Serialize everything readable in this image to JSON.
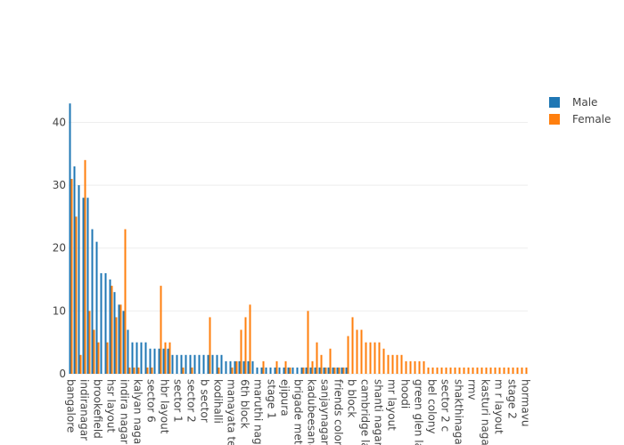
{
  "chart_data": {
    "type": "bar",
    "categories": [
      "bangalore",
      null,
      null,
      "indiranagar",
      null,
      null,
      "brookefield",
      null,
      null,
      "hsr layout",
      null,
      null,
      "indira nagar",
      null,
      null,
      "kalyan nagar",
      null,
      null,
      "sector 6",
      null,
      null,
      "hbr layout",
      null,
      null,
      "sector 1",
      null,
      null,
      "sector 2",
      null,
      null,
      "b sector",
      null,
      null,
      "kodihalli",
      null,
      null,
      "manayata tec",
      null,
      null,
      "6th block",
      null,
      null,
      "maruthi naga",
      null,
      null,
      "stage 1",
      null,
      null,
      "ejipura",
      null,
      null,
      "brigade metr",
      null,
      null,
      "kadubeesana",
      null,
      null,
      "sanjaynagar",
      null,
      null,
      "friends colon",
      null,
      null,
      "b block",
      null,
      null,
      "cambridge la",
      null,
      null,
      "shanti nagar",
      null,
      null,
      "mr layout",
      null,
      null,
      "hoodi",
      null,
      null,
      "green glen la",
      null,
      null,
      "bel colony",
      null,
      null,
      "sector 2 c",
      null,
      null,
      "shakthinagar",
      null,
      null,
      "rmv",
      null,
      null,
      "kasturi nagar",
      null,
      null,
      "m r layout",
      null,
      null,
      "stage 2",
      null,
      null,
      "hormavu"
    ],
    "series": [
      {
        "name": "Male",
        "color": "#1f77b4",
        "values": [
          43,
          33,
          30,
          28,
          28,
          23,
          21,
          16,
          16,
          15,
          13,
          11,
          10,
          7,
          5,
          5,
          5,
          5,
          4,
          4,
          4,
          4,
          4,
          3,
          3,
          3,
          3,
          3,
          3,
          3,
          3,
          3,
          3,
          3,
          3,
          2,
          2,
          2,
          2,
          2,
          2,
          2,
          1,
          1,
          1,
          1,
          1,
          1,
          1,
          1,
          1,
          1,
          1,
          1,
          1,
          1,
          1,
          1,
          1,
          1,
          1,
          1,
          1,
          0,
          0,
          0,
          0,
          0,
          0,
          0,
          0,
          0,
          0,
          0,
          0,
          0,
          0,
          0,
          0,
          0,
          0,
          0,
          0,
          0,
          0,
          0,
          0,
          0,
          0,
          0,
          0,
          0,
          0,
          0,
          0,
          0,
          0,
          0,
          0,
          0,
          0,
          0,
          0
        ]
      },
      {
        "name": "Female",
        "color": "#ff7f0e",
        "values": [
          31,
          25,
          3,
          34,
          10,
          7,
          5,
          0,
          5,
          14,
          9,
          11,
          23,
          1,
          1,
          1,
          0,
          1,
          1,
          0,
          14,
          5,
          5,
          0,
          0,
          1,
          0,
          1,
          0,
          0,
          0,
          9,
          0,
          1,
          0,
          0,
          1,
          2,
          7,
          9,
          11,
          0,
          0,
          2,
          0,
          0,
          2,
          0,
          2,
          1,
          0,
          0,
          1,
          10,
          2,
          5,
          3,
          1,
          4,
          1,
          1,
          1,
          6,
          9,
          7,
          7,
          5,
          5,
          5,
          5,
          4,
          3,
          3,
          3,
          3,
          2,
          2,
          2,
          2,
          2,
          1,
          1,
          1,
          1,
          1,
          1,
          1,
          1,
          1,
          1,
          1,
          1,
          1,
          1,
          1,
          1,
          1,
          1,
          1,
          1,
          1,
          1,
          1
        ]
      }
    ],
    "ylim": [
      0,
      45.3
    ],
    "yticks": [
      0,
      10,
      20,
      30,
      40
    ],
    "grid": true,
    "legend": "top-right"
  }
}
